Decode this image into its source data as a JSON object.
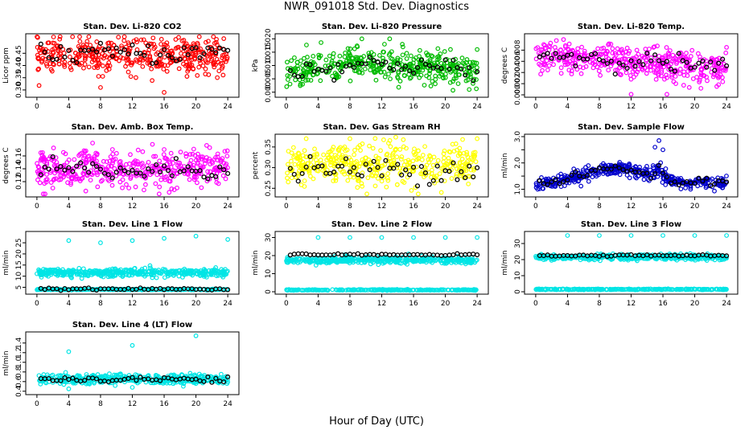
{
  "figure": {
    "title": "NWR_091018  Std. Dev. Diagnostics",
    "xlabel": "Hour of Day (UTC)"
  },
  "colors": {
    "red": "#ff0000",
    "green": "#00bb00",
    "magenta": "#ff00ff",
    "yellow": "#ffff00",
    "blue": "#0000cc",
    "cyan": "#00e5e5",
    "black": "#000000"
  },
  "chart_data": [
    {
      "type": "scatter",
      "title": "Stan. Dev. Li-820 CO2",
      "ylabel": "Licor ppm",
      "xlim": [
        -1,
        25
      ],
      "ylim": [
        0.28,
        0.52
      ],
      "xticks": [
        "0",
        "4",
        "8",
        "12",
        "16",
        "20",
        "24"
      ],
      "yticks": [
        0.3,
        0.35,
        0.4,
        0.45
      ],
      "yticklabels": [
        "0.30",
        "0.35",
        "0.40",
        "0.45"
      ],
      "color": "#ff0000",
      "base": 0.44,
      "spread": 0.035,
      "trend": "flat",
      "outliers": [
        [
          8,
          0.31
        ],
        [
          16,
          0.29
        ],
        [
          11,
          0.52
        ],
        [
          23.5,
          0.51
        ]
      ],
      "black_offset": 0.01
    },
    {
      "type": "scatter",
      "title": "Stan. Dev. Li-820 Pressure",
      "ylabel": "kPa",
      "xlim": [
        -1,
        25
      ],
      "ylim": [
        -0.001,
        0.021
      ],
      "xticks": [
        "0",
        "4",
        "8",
        "12",
        "16",
        "20",
        "24"
      ],
      "yticks": [
        0.0,
        0.005,
        0.01,
        0.015,
        0.02
      ],
      "yticklabels": [
        "0.000",
        "0.005",
        "0.010",
        "0.015",
        "0.020"
      ],
      "color": "#00bb00",
      "base": 0.009,
      "spread": 0.003,
      "trend": "hump",
      "outliers": [
        [
          24,
          0.016
        ],
        [
          23,
          0.001
        ],
        [
          9.5,
          0.02
        ],
        [
          13,
          0.02
        ]
      ],
      "black_offset": 0.0
    },
    {
      "type": "scatter",
      "title": "Stan. Dev. Li-820 Temp.",
      "ylabel": "degrees C",
      "xlim": [
        -1,
        25
      ],
      "ylim": [
        0.0,
        0.0105
      ],
      "xticks": [
        "0",
        "4",
        "8",
        "12",
        "16",
        "20",
        "24"
      ],
      "yticks": [
        0.0,
        0.002,
        0.004,
        0.006,
        0.008
      ],
      "yticklabels": [
        "0.000",
        "0.002",
        "0.004",
        "0.006",
        "0.008"
      ],
      "color": "#ff00ff",
      "base": 0.0055,
      "spread": 0.0014,
      "trend": "down",
      "outliers": [
        [
          3.5,
          0.0099
        ],
        [
          12,
          0.0001
        ],
        [
          16.5,
          0.0001
        ],
        [
          24,
          0.0085
        ]
      ],
      "black_offset": 0.0004
    },
    {
      "type": "scatter",
      "title": "Stan. Dev. Amb. Box Temp.",
      "ylabel": "degrees C",
      "xlim": [
        -1,
        25
      ],
      "ylim": [
        0.1,
        0.19
      ],
      "xticks": [
        "0",
        "4",
        "8",
        "12",
        "16",
        "20",
        "24"
      ],
      "yticks": [
        0.12,
        0.14,
        0.16
      ],
      "yticklabels": [
        "0.12",
        "0.14",
        "0.16"
      ],
      "color": "#ff00ff",
      "base": 0.14,
      "spread": 0.014,
      "trend": "flat",
      "outliers": [
        [
          7,
          0.18
        ],
        [
          9.5,
          0.17
        ],
        [
          16,
          0.17
        ],
        [
          2,
          0.11
        ]
      ],
      "black_offset": -0.003
    },
    {
      "type": "scatter",
      "title": "Stan. Dev. Gas Stream RH",
      "ylabel": "percent",
      "xlim": [
        -1,
        25
      ],
      "ylim": [
        0.235,
        0.375
      ],
      "xticks": [
        "0",
        "4",
        "8",
        "12",
        "16",
        "20",
        "24"
      ],
      "yticks": [
        0.25,
        0.3,
        0.35
      ],
      "yticklabels": [
        "0.25",
        "0.30",
        "0.35"
      ],
      "color": "#ffff00",
      "base": 0.305,
      "spread": 0.025,
      "trend": "flat",
      "outliers": [
        [
          2.5,
          0.37
        ],
        [
          8,
          0.37
        ],
        [
          24,
          0.37
        ],
        [
          19.5,
          0.24
        ]
      ],
      "black_offset": -0.01
    },
    {
      "type": "scatter",
      "title": "Stan. Dev. Sample Flow",
      "ylabel": "ml/min",
      "xlim": [
        -1,
        25
      ],
      "ylim": [
        0.8,
        3.0
      ],
      "xticks": [
        "0",
        "4",
        "8",
        "12",
        "16",
        "20",
        "24"
      ],
      "yticks": [
        1.0,
        1.5,
        2.0,
        2.5,
        3.0
      ],
      "yticklabels": [
        "1.0",
        "",
        "2.0",
        "",
        "3.0"
      ],
      "color": "#0000cc",
      "base": 1.3,
      "spread": 0.12,
      "trend": "flowhump",
      "outliers": [
        [
          15.5,
          2.85
        ],
        [
          15,
          2.6
        ],
        [
          16,
          2.5
        ]
      ],
      "black_offset": 0.0
    },
    {
      "type": "scatter",
      "title": "Stan. Dev. Line 1 Flow",
      "ylabel": "ml/min",
      "xlim": [
        -1,
        25
      ],
      "ylim": [
        3,
        29
      ],
      "xticks": [
        "0",
        "4",
        "8",
        "12",
        "16",
        "20",
        "24"
      ],
      "yticks": [
        5,
        10,
        15,
        20,
        25
      ],
      "yticklabels": [
        "5",
        "10",
        "15",
        "20",
        "25"
      ],
      "color": "#00e5e5",
      "base": 11.5,
      "spread": 0.9,
      "trend": "flat",
      "outliers": [
        [
          4,
          26
        ],
        [
          8,
          25
        ],
        [
          12,
          26
        ],
        [
          16,
          27
        ],
        [
          20,
          28
        ],
        [
          24,
          26.5
        ]
      ],
      "black_band": 4.2,
      "cyan_low_band": 4.0
    },
    {
      "type": "scatter",
      "title": "Stan. Dev. Line 2 Flow",
      "ylabel": "ml/min",
      "xlim": [
        -1,
        25
      ],
      "ylim": [
        0,
        32
      ],
      "xticks": [
        "0",
        "4",
        "8",
        "12",
        "16",
        "20",
        "24"
      ],
      "yticks": [
        0,
        10,
        20,
        30
      ],
      "yticklabels": [
        "0",
        "10",
        "20",
        "30"
      ],
      "color": "#00e5e5",
      "base": 17.5,
      "spread": 0.9,
      "trend": "flat",
      "outliers": [
        [
          4,
          30
        ],
        [
          8,
          30
        ],
        [
          12,
          30
        ],
        [
          16,
          30
        ],
        [
          20,
          30
        ],
        [
          24,
          30
        ]
      ],
      "black_band": 20.5,
      "cyan_low_band": 1.0
    },
    {
      "type": "scatter",
      "title": "Stan. Dev. Line 3 Flow",
      "ylabel": "ml/min",
      "xlim": [
        -1,
        25
      ],
      "ylim": [
        0,
        36
      ],
      "xticks": [
        "0",
        "4",
        "8",
        "12",
        "16",
        "20",
        "24"
      ],
      "yticks": [
        0,
        10,
        20,
        30
      ],
      "yticklabels": [
        "0",
        "10",
        "20",
        "30"
      ],
      "color": "#00e5e5",
      "base": 21.5,
      "spread": 0.8,
      "trend": "flat",
      "outliers": [
        [
          4,
          35
        ],
        [
          8,
          35
        ],
        [
          12,
          35
        ],
        [
          16,
          35
        ],
        [
          20,
          35
        ],
        [
          24,
          35
        ]
      ],
      "black_band": 22.5,
      "cyan_low_band": 1.5
    },
    {
      "type": "scatter",
      "title": "Stan. Dev. Line 4 (LT) Flow",
      "ylabel": "ml/min",
      "xlim": [
        -1,
        25
      ],
      "ylim": [
        0.38,
        1.58
      ],
      "xticks": [
        "0",
        "4",
        "8",
        "12",
        "16",
        "20",
        "24"
      ],
      "yticks": [
        0.4,
        0.6,
        0.8,
        1.0,
        1.2,
        1.4
      ],
      "yticklabels": [
        "0.4",
        "0.6",
        "0.8",
        "1.0",
        "1.2",
        "1.4"
      ],
      "color": "#00e5e5",
      "base": 0.65,
      "spread": 0.05,
      "trend": "flat",
      "outliers": [
        [
          4,
          1.22
        ],
        [
          12,
          1.35
        ],
        [
          20,
          1.55
        ],
        [
          4,
          0.45
        ],
        [
          12,
          0.48
        ]
      ],
      "black_offset": 0.0
    }
  ]
}
